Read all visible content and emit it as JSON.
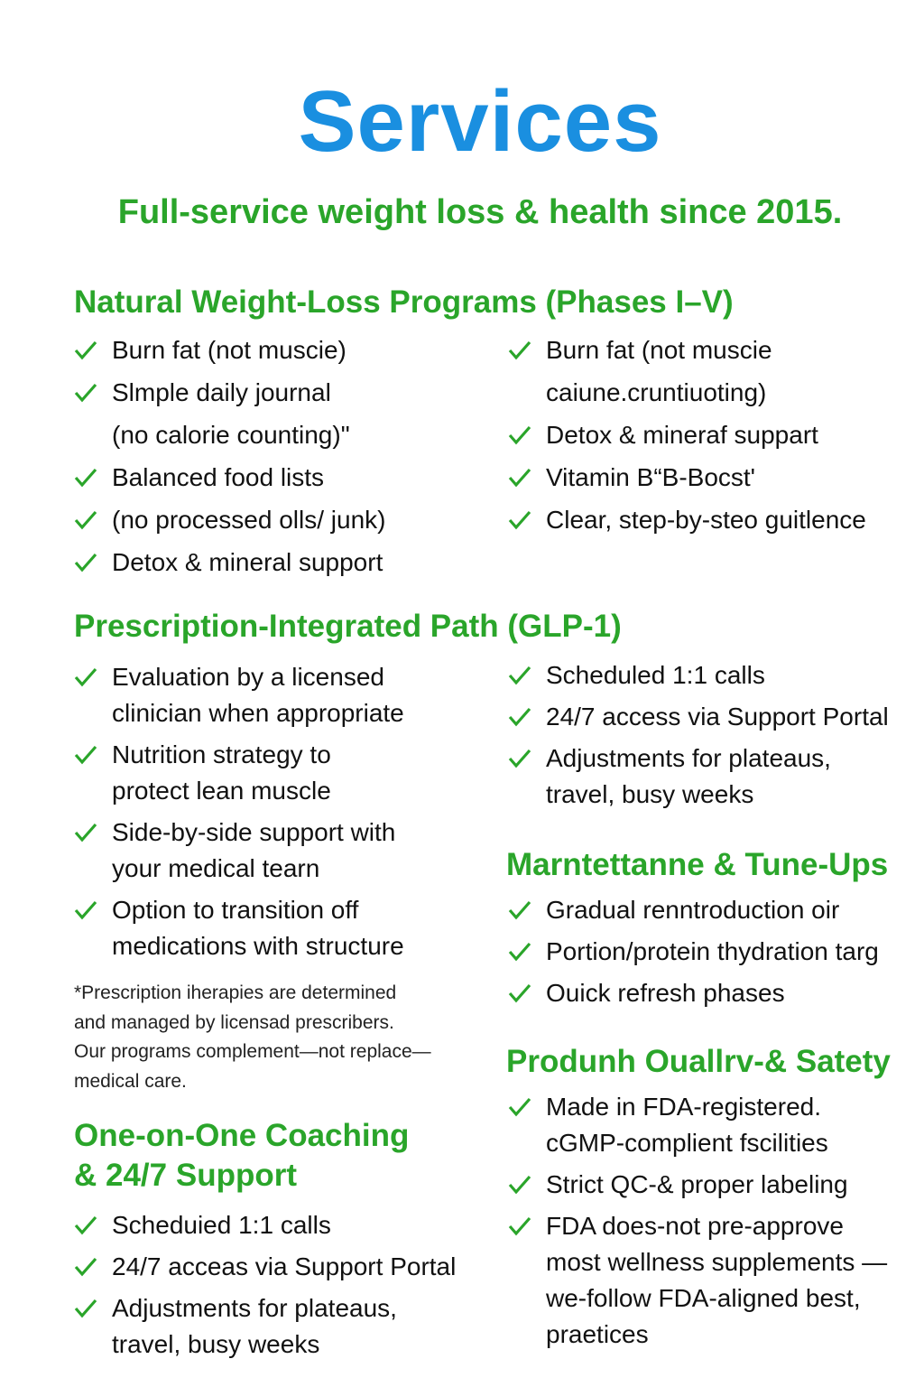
{
  "title": "Services",
  "subtitle": "Full-service weight loss & health since 2015.",
  "colors": {
    "title": "#1a8fe0",
    "accent": "#2aa52a",
    "text": "#111111"
  },
  "check_icon": "check-mark-icon",
  "sections": {
    "natural": {
      "heading": "Natural Weight-Loss Programs (Phases I–V)",
      "left": [
        {
          "lines": [
            "Burn fat (not muscie)"
          ]
        },
        {
          "lines": [
            "Slmple daily journal",
            "(no calorie counting)\""
          ]
        },
        {
          "lines": [
            "Balanced food lists"
          ]
        },
        {
          "lines": [
            "(no processed olls/ junk)"
          ]
        },
        {
          "lines": [
            "Detox & mineral support"
          ]
        }
      ],
      "right": [
        {
          "lines": [
            "Burn fat (not muscie",
            "caiune.cruntiuoting)"
          ]
        },
        {
          "lines": [
            "Detox & mineraf suppart"
          ]
        },
        {
          "lines": [
            "Vitamin B“B-Bocst'"
          ]
        },
        {
          "lines": [
            "Clear, step-by-steo guitlence"
          ]
        }
      ]
    },
    "prescription": {
      "heading": "Prescription-Integrated Path (GLP-1)",
      "left": [
        {
          "lines": [
            "Evaluation by a licensed",
            "clinician when appropriate"
          ]
        },
        {
          "lines": [
            "Nutrition strategy to",
            "protect lean muscle"
          ]
        },
        {
          "lines": [
            "Side-by-side support with",
            "your medical tearn"
          ]
        },
        {
          "lines": [
            "Option to transition off",
            "medications with structure"
          ]
        }
      ],
      "right": [
        {
          "lines": [
            "Scheduled 1:1 calls"
          ]
        },
        {
          "lines": [
            "24/7 access via Support Portal"
          ]
        },
        {
          "lines": [
            "Adjustments for plateaus,",
            "travel, busy weeks"
          ]
        }
      ],
      "footnote": [
        "*Prescription iherapies are determined",
        "and managed by licensad prescribers.",
        "Our programs complement—not replace—",
        "medical care."
      ]
    },
    "coaching": {
      "heading": [
        "One-on-One Coaching",
        "& 24/7 Support"
      ],
      "items": [
        {
          "lines": [
            "Scheduied 1:1 calls"
          ]
        },
        {
          "lines": [
            "24/7 acceas via Support Portal"
          ]
        },
        {
          "lines": [
            "Adjustments for plateaus,",
            "travel, busy weeks"
          ]
        }
      ]
    },
    "maintenance": {
      "heading": "Marntettanne & Tune-Ups",
      "items": [
        {
          "lines": [
            "Gradual renntroduction oir"
          ]
        },
        {
          "lines": [
            "Portion/protein thydration targ"
          ]
        },
        {
          "lines": [
            "Ouick refresh phases"
          ]
        }
      ]
    },
    "quality": {
      "heading": "Produnh Ouallrv-& Satety",
      "items": [
        {
          "lines": [
            "Made in FDA-registered.",
            "cGMP-complient fscilities"
          ]
        },
        {
          "lines": [
            "Strict QC-& proper labeling"
          ]
        },
        {
          "lines": [
            "FDA does-not pre-approve",
            "most wellness supplements —",
            "we-follow FDA-aligned best,",
            "praetices"
          ]
        }
      ]
    }
  }
}
